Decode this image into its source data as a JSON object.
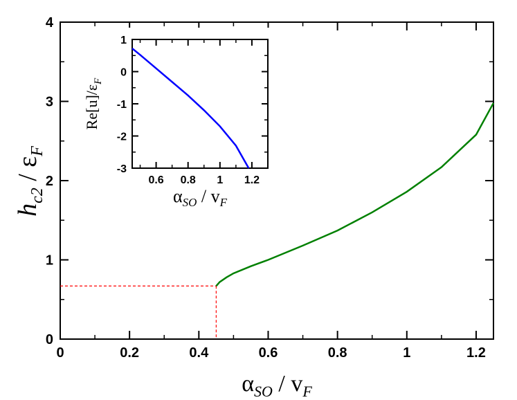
{
  "chart_data": [
    {
      "type": "line",
      "xlabel": {
        "main": "α",
        "sub": "SO",
        "slash": " / ",
        "main2": "v",
        "sub2": "F"
      },
      "ylabel": {
        "main": "h",
        "sub": "c2",
        "slash": " / ",
        "main2": "ε",
        "sub2": "F"
      },
      "xlim": [
        0,
        1.25
      ],
      "ylim": [
        0,
        4
      ],
      "xticks": [
        "0",
        "0.2",
        "0.4",
        "0.6",
        "0.8",
        "1",
        "1.2"
      ],
      "xtick_values": [
        0,
        0.2,
        0.4,
        0.6,
        0.8,
        1.0,
        1.2
      ],
      "yticks": [
        "0",
        "1",
        "2",
        "3",
        "4"
      ],
      "ytick_values": [
        0,
        1,
        2,
        3,
        4
      ],
      "grid": false,
      "series": [
        {
          "color": "#008000",
          "style": "solid",
          "x": [
            0.45,
            0.46,
            0.48,
            0.5,
            0.55,
            0.6,
            0.7,
            0.8,
            0.9,
            1.0,
            1.1,
            1.2,
            1.25
          ],
          "y": [
            0.67,
            0.72,
            0.78,
            0.83,
            0.92,
            1.0,
            1.18,
            1.37,
            1.6,
            1.86,
            2.17,
            2.58,
            2.98
          ]
        }
      ],
      "annotations": [
        {
          "type": "dashed-guide",
          "color": "#ff0000",
          "x": 0.45,
          "y": 0.67
        }
      ]
    },
    {
      "type": "line",
      "position": "inset-top-left",
      "xlabel": {
        "main": "α",
        "sub": "SO",
        "slash": " / ",
        "main2": "v",
        "sub2": "F"
      },
      "ylabel": {
        "text": "Re[u]/ε",
        "sub": "F"
      },
      "xlim": [
        0.45,
        1.3
      ],
      "ylim": [
        -3,
        1
      ],
      "xticks": [
        "0.6",
        "0.8",
        "1",
        "1.2"
      ],
      "xtick_values": [
        0.6,
        0.8,
        1.0,
        1.2
      ],
      "yticks": [
        "-3",
        "-2",
        "-1",
        "0",
        "1"
      ],
      "ytick_values": [
        -3,
        -2,
        -1,
        0,
        1
      ],
      "grid": false,
      "series": [
        {
          "color": "#0000ff",
          "style": "solid",
          "x": [
            0.45,
            0.5,
            0.6,
            0.7,
            0.8,
            0.9,
            1.0,
            1.1,
            1.18
          ],
          "y": [
            0.72,
            0.52,
            0.1,
            -0.32,
            -0.74,
            -1.2,
            -1.7,
            -2.3,
            -3.0
          ]
        }
      ]
    }
  ]
}
